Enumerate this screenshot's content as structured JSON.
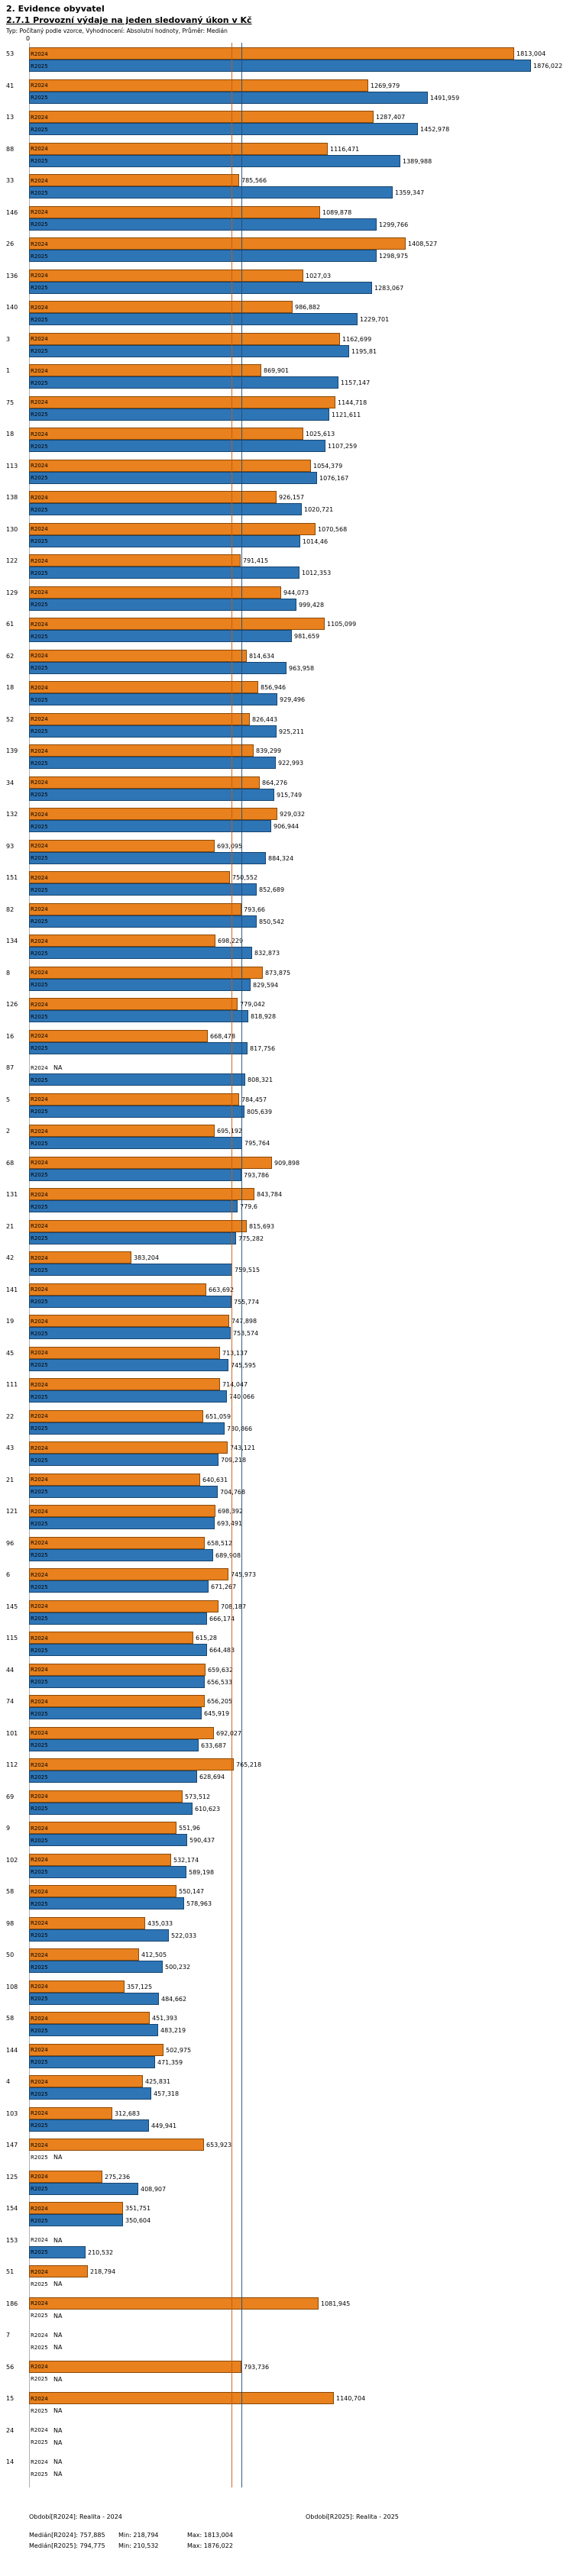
{
  "header": {
    "title1": "2. Evidence obyvatel",
    "title2": "2.7.1 Provozní výdaje na jeden sledovaný úkon v Kč",
    "subtitle": "Typ: Počítaný podle vzorce, Vyhodnocení: Absolutní hodnoty, Průměr: Medián"
  },
  "axis": {
    "zero_label": "0"
  },
  "chart_data": {
    "type": "bar",
    "orientation": "horizontal",
    "title": "2.7.1 Provozní výdaje na jeden sledovaný úkon v Kč",
    "unit": "Kč",
    "xlim": [
      0,
      1900
    ],
    "na_text": "NA",
    "series": [
      {
        "key": "R2024",
        "name": "R2024",
        "color": "#E8811E",
        "border": "#8A4A08",
        "period": "Realita - 2024"
      },
      {
        "key": "R2025",
        "name": "R2025",
        "color": "#2E75B6",
        "border": "#17456E",
        "period": "Realita - 2025"
      }
    ],
    "median_lines": [
      {
        "series": "R2024",
        "value": 757.885,
        "color": "#C55A11"
      },
      {
        "series": "R2025",
        "value": 794.775,
        "color": "#1F4E79"
      }
    ],
    "stats": {
      "R2024": {
        "median": "757,885",
        "min": "218,794",
        "max": "1813,004"
      },
      "R2025": {
        "median": "794,775",
        "min": "210,532",
        "max": "1876,022"
      }
    },
    "groups": [
      {
        "label": "53",
        "values": [
          "1813,004",
          "1876,022"
        ]
      },
      {
        "label": "41",
        "values": [
          "1269,979",
          "1491,959"
        ]
      },
      {
        "label": "13",
        "values": [
          "1287,407",
          "1452,978"
        ]
      },
      {
        "label": "88",
        "values": [
          "1116,471",
          "1389,988"
        ]
      },
      {
        "label": "33",
        "values": [
          "785,566",
          "1359,347"
        ]
      },
      {
        "label": "146",
        "values": [
          "1089,878",
          "1299,766"
        ]
      },
      {
        "label": "26",
        "values": [
          "1408,527",
          "1298,975"
        ]
      },
      {
        "label": "136",
        "values": [
          "1027,03",
          "1283,067"
        ]
      },
      {
        "label": "140",
        "values": [
          "986,882",
          "1229,701"
        ]
      },
      {
        "label": "3",
        "values": [
          "1162,699",
          "1195,81"
        ]
      },
      {
        "label": "1",
        "values": [
          "869,901",
          "1157,147"
        ]
      },
      {
        "label": "75",
        "values": [
          "1144,718",
          "1121,611"
        ]
      },
      {
        "label": "18",
        "values": [
          "1025,613",
          "1107,259"
        ]
      },
      {
        "label": "113",
        "values": [
          "1054,379",
          "1076,167"
        ]
      },
      {
        "label": "138",
        "values": [
          "926,157",
          "1020,721"
        ]
      },
      {
        "label": "130",
        "values": [
          "1070,568",
          "1014,46"
        ]
      },
      {
        "label": "122",
        "values": [
          "791,415",
          "1012,353"
        ]
      },
      {
        "label": "129",
        "values": [
          "944,073",
          "999,428"
        ]
      },
      {
        "label": "61",
        "values": [
          "1105,099",
          "981,659"
        ]
      },
      {
        "label": "62",
        "values": [
          "814,634",
          "963,958"
        ]
      },
      {
        "label": "18",
        "values": [
          "856,946",
          "929,496"
        ]
      },
      {
        "label": "52",
        "values": [
          "826,443",
          "925,211"
        ]
      },
      {
        "label": "139",
        "values": [
          "839,299",
          "922,993"
        ]
      },
      {
        "label": "34",
        "values": [
          "864,276",
          "915,749"
        ]
      },
      {
        "label": "132",
        "values": [
          "929,032",
          "906,944"
        ]
      },
      {
        "label": "93",
        "values": [
          "693,095",
          "884,324"
        ]
      },
      {
        "label": "151",
        "values": [
          "750,552",
          "852,689"
        ]
      },
      {
        "label": "82",
        "values": [
          "793,66",
          "850,542"
        ]
      },
      {
        "label": "134",
        "values": [
          "698,229",
          "832,873"
        ]
      },
      {
        "label": "8",
        "values": [
          "873,875",
          "829,594"
        ]
      },
      {
        "label": "126",
        "values": [
          "779,042",
          "818,928"
        ]
      },
      {
        "label": "16",
        "values": [
          "668,478",
          "817,756"
        ]
      },
      {
        "label": "87",
        "values": [
          "NA",
          "808,321"
        ]
      },
      {
        "label": "5",
        "values": [
          "784,457",
          "805,639"
        ]
      },
      {
        "label": "2",
        "values": [
          "695,192",
          "795,764"
        ]
      },
      {
        "label": "68",
        "values": [
          "909,898",
          "793,786"
        ]
      },
      {
        "label": "131",
        "values": [
          "843,784",
          "779,6"
        ]
      },
      {
        "label": "21",
        "values": [
          "815,693",
          "775,282"
        ]
      },
      {
        "label": "42",
        "values": [
          "383,204",
          "759,515"
        ]
      },
      {
        "label": "141",
        "values": [
          "663,692",
          "755,774"
        ]
      },
      {
        "label": "19",
        "values": [
          "747,898",
          "753,574"
        ]
      },
      {
        "label": "45",
        "values": [
          "713,137",
          "745,595"
        ]
      },
      {
        "label": "111",
        "values": [
          "714,047",
          "740,066"
        ]
      },
      {
        "label": "22",
        "values": [
          "651,059",
          "730,866"
        ]
      },
      {
        "label": "43",
        "values": [
          "743,121",
          "709,218"
        ]
      },
      {
        "label": "21",
        "values": [
          "640,631",
          "704,768"
        ]
      },
      {
        "label": "121",
        "values": [
          "698,392",
          "693,491"
        ]
      },
      {
        "label": "96",
        "values": [
          "658,512",
          "689,908"
        ]
      },
      {
        "label": "6",
        "values": [
          "745,973",
          "671,267"
        ]
      },
      {
        "label": "145",
        "values": [
          "708,187",
          "666,174"
        ]
      },
      {
        "label": "115",
        "values": [
          "615,28",
          "664,483"
        ]
      },
      {
        "label": "44",
        "values": [
          "659,632",
          "656,533"
        ]
      },
      {
        "label": "74",
        "values": [
          "656,205",
          "645,919"
        ]
      },
      {
        "label": "101",
        "values": [
          "692,027",
          "633,687"
        ]
      },
      {
        "label": "112",
        "values": [
          "765,218",
          "628,694"
        ]
      },
      {
        "label": "69",
        "values": [
          "573,512",
          "610,623"
        ]
      },
      {
        "label": "9",
        "values": [
          "551,96",
          "590,437"
        ]
      },
      {
        "label": "102",
        "values": [
          "532,174",
          "589,198"
        ]
      },
      {
        "label": "58",
        "values": [
          "550,147",
          "578,963"
        ]
      },
      {
        "label": "98",
        "values": [
          "435,033",
          "522,033"
        ]
      },
      {
        "label": "50",
        "values": [
          "412,505",
          "500,232"
        ]
      },
      {
        "label": "108",
        "values": [
          "357,125",
          "484,662"
        ]
      },
      {
        "label": "58",
        "values": [
          "451,393",
          "483,219"
        ]
      },
      {
        "label": "144",
        "values": [
          "502,975",
          "471,359"
        ]
      },
      {
        "label": "4",
        "values": [
          "425,831",
          "457,318"
        ]
      },
      {
        "label": "103",
        "values": [
          "312,683",
          "449,941"
        ]
      },
      {
        "label": "147",
        "values": [
          "653,923",
          "NA"
        ]
      },
      {
        "label": "125",
        "values": [
          "275,236",
          "408,907"
        ]
      },
      {
        "label": "154",
        "values": [
          "351,751",
          "350,604"
        ]
      },
      {
        "label": "153",
        "values": [
          "NA",
          "210,532"
        ]
      },
      {
        "label": "51",
        "values": [
          "218,794",
          "NA"
        ]
      },
      {
        "label": "186",
        "values": [
          "1081,945",
          "NA"
        ]
      },
      {
        "label": "7",
        "values": [
          "NA",
          "NA"
        ]
      },
      {
        "label": "56",
        "values": [
          "793,736",
          "NA"
        ]
      },
      {
        "label": "15",
        "values": [
          "1140,704",
          "NA"
        ]
      },
      {
        "label": "24",
        "values": [
          "NA",
          "NA"
        ]
      },
      {
        "label": "14",
        "values": [
          "NA",
          "NA"
        ]
      }
    ]
  },
  "footer": {
    "period_r2024": "Období[R2024]: Realita - 2024",
    "period_r2025": "Období[R2025]: Realita - 2025",
    "median_r2024": "Medián[R2024]: 757,885",
    "min_r2024": "Min: 218,794",
    "max_r2024": "Max: 1813,004",
    "median_r2025": "Medián[R2025]: 794,775",
    "min_r2025": "Min: 210,532",
    "max_r2025": "Max: 1876,022"
  }
}
